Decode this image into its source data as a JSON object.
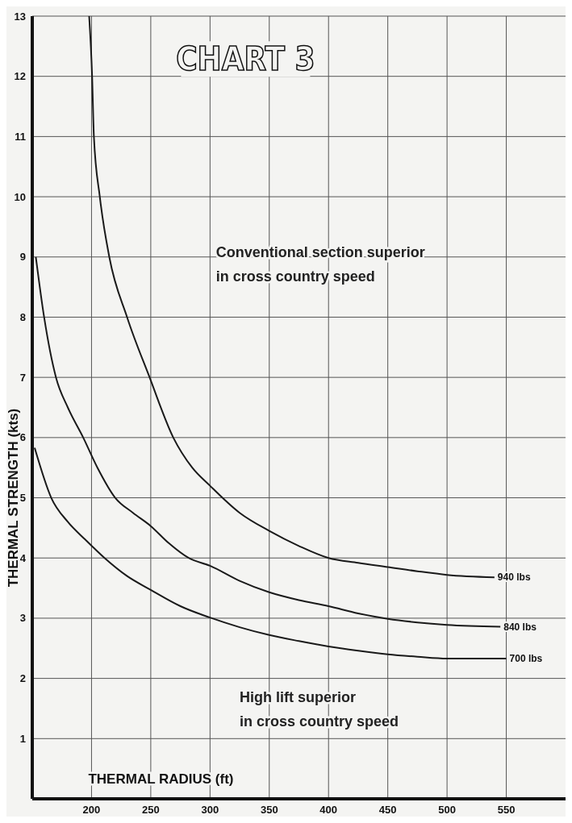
{
  "chart_data": {
    "type": "line",
    "title": "CHART 3",
    "xlabel": "THERMAL RADIUS (ft)",
    "ylabel": "THERMAL STRENGTH (kts)",
    "annotations": [
      "Conventional section superior\nin cross country speed",
      "High lift superior\nin cross country speed"
    ],
    "xlim": [
      150,
      600
    ],
    "ylim": [
      0,
      13
    ],
    "xticks": [
      200,
      250,
      300,
      350,
      400,
      450,
      500,
      550
    ],
    "yticks": [
      1,
      2,
      3,
      4,
      5,
      6,
      7,
      8,
      9,
      10,
      11,
      12,
      13
    ],
    "grid": true,
    "line_style": "solid",
    "marker": "none",
    "series": [
      {
        "name": "940 lbs",
        "color": "#1a1a1a",
        "x": [
          198,
          200.5,
          202,
          207,
          215,
          230,
          249,
          269,
          285,
          300,
          325,
          350,
          375,
          400,
          425,
          450,
          475,
          500,
          540
        ],
        "values": [
          13,
          12,
          11,
          10,
          9,
          8,
          7,
          6,
          5.5,
          5.2,
          4.75,
          4.45,
          4.2,
          4,
          3.92,
          3.85,
          3.78,
          3.72,
          3.68
        ]
      },
      {
        "name": "840 lbs",
        "color": "#1a1a1a",
        "x": [
          153,
          160,
          170,
          180,
          193,
          205,
          220,
          235,
          250,
          265,
          282,
          300,
          325,
          350,
          375,
          400,
          425,
          450,
          475,
          500,
          545
        ],
        "values": [
          9,
          8,
          7,
          6.5,
          6,
          5.5,
          5,
          4.75,
          4.53,
          4.25,
          4,
          3.87,
          3.62,
          3.43,
          3.3,
          3.2,
          3.08,
          2.99,
          2.93,
          2.89,
          2.86
        ]
      },
      {
        "name": "700 lbs",
        "color": "#1a1a1a",
        "x": [
          152,
          166,
          180,
          195,
          211,
          230,
          250,
          275,
          300,
          325,
          350,
          375,
          400,
          425,
          450,
          475,
          500,
          550
        ],
        "values": [
          5.83,
          5,
          4.6,
          4.3,
          4,
          3.7,
          3.47,
          3.2,
          3.01,
          2.85,
          2.72,
          2.62,
          2.53,
          2.46,
          2.4,
          2.36,
          2.33,
          2.33
        ]
      }
    ]
  }
}
